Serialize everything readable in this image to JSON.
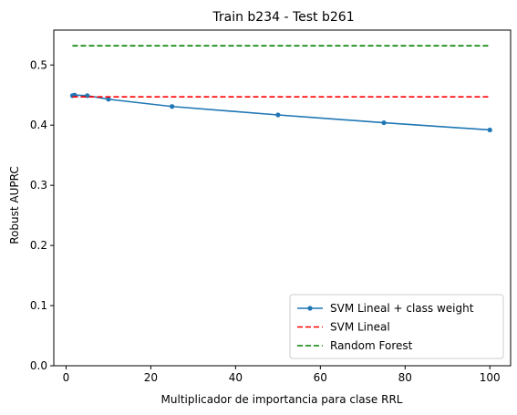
{
  "chart_data": {
    "type": "line",
    "title": "Train b234 - Test b261",
    "xlabel": "Multiplicador de importancia para clase RRL",
    "ylabel": "Robust AUPRC",
    "xlim": [
      -2.9,
      104.9
    ],
    "ylim": [
      0.0,
      0.558
    ],
    "xticks": [
      0,
      20,
      40,
      60,
      80,
      100
    ],
    "yticks": [
      0.0,
      0.1,
      0.2,
      0.3,
      0.4,
      0.5
    ],
    "xtick_labels": [
      "0",
      "20",
      "40",
      "60",
      "80",
      "100"
    ],
    "ytick_labels": [
      "0.0",
      "0.1",
      "0.2",
      "0.3",
      "0.4",
      "0.5"
    ],
    "grid": false,
    "legend_position": "lower-right",
    "series": [
      {
        "name": "SVM Lineal + class weight",
        "color": "#1f77b4",
        "style": "solid",
        "marker": "circle",
        "x": [
          1.5,
          2,
          5,
          10,
          25,
          50,
          75,
          100
        ],
        "y": [
          0.449,
          0.45,
          0.449,
          0.443,
          0.431,
          0.417,
          0.404,
          0.392
        ]
      },
      {
        "name": "SVM Lineal",
        "color": "#ff0000",
        "style": "dashed",
        "marker": "none",
        "x": [
          1.5,
          100
        ],
        "y": [
          0.447,
          0.447
        ]
      },
      {
        "name": "Random Forest",
        "color": "#008000",
        "style": "dashed",
        "marker": "none",
        "x": [
          1.5,
          100
        ],
        "y": [
          0.532,
          0.532
        ]
      }
    ]
  }
}
